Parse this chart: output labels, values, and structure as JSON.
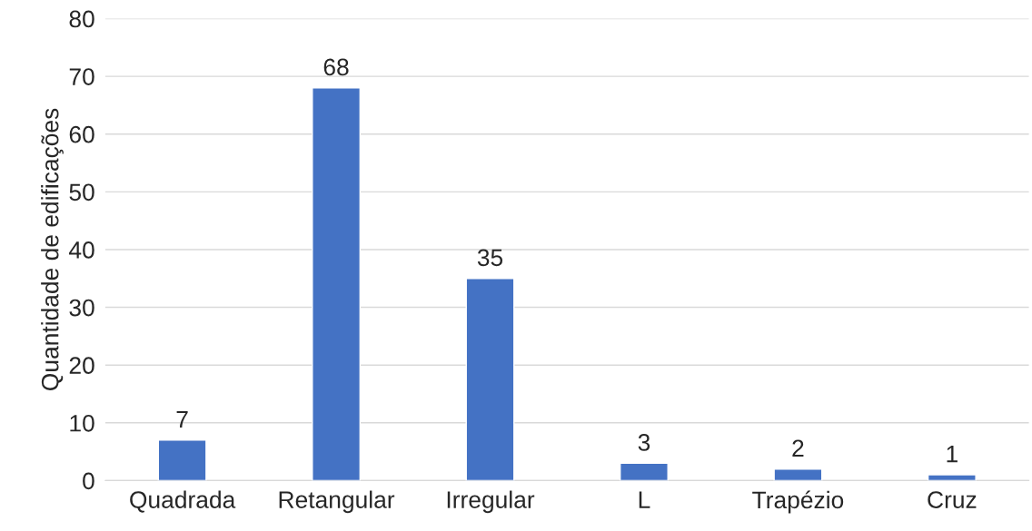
{
  "chart_data": {
    "type": "bar",
    "ylabel": "Quantidade de edificações",
    "categories": [
      "Quadrada",
      "Retangular",
      "Irregular",
      "L",
      "Trapézio",
      "Cruz"
    ],
    "values": [
      7,
      68,
      35,
      3,
      2,
      1
    ],
    "color": "#4472c4",
    "ylim": [
      0,
      80
    ],
    "yticks": [
      0,
      10,
      20,
      30,
      40,
      50,
      60,
      70,
      80
    ],
    "grid": "y",
    "data_labels": true
  }
}
